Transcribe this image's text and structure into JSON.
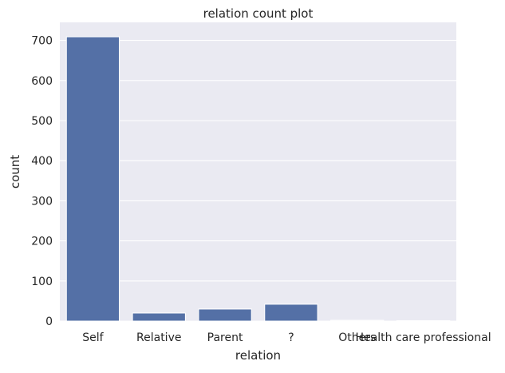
{
  "chart_data": {
    "type": "bar",
    "title": "relation count plot",
    "xlabel": "relation",
    "ylabel": "count",
    "categories": [
      "Self",
      "Relative",
      "Parent",
      "?",
      "Others",
      "Health care professional"
    ],
    "values": [
      709,
      20,
      30,
      42,
      2,
      1
    ],
    "ylim": [
      0,
      745
    ],
    "yticks": [
      0,
      100,
      200,
      300,
      400,
      500,
      600,
      700
    ],
    "grid": true,
    "bar_color": "#5470a6",
    "plot_background": "#eaeaf2",
    "grid_color": "#ffffff"
  }
}
